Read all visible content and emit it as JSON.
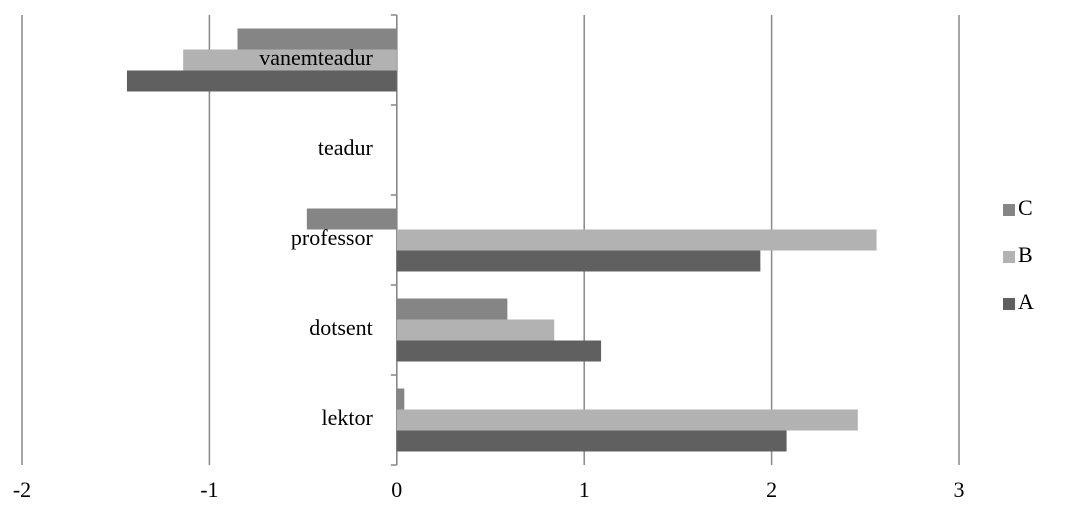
{
  "chart_data": {
    "type": "hbar",
    "categories": [
      "lektor",
      "dotsent",
      "professor",
      "teadur",
      "vanemteadur"
    ],
    "series": [
      {
        "name": "A",
        "color": "#606060",
        "values": [
          2.08,
          1.09,
          1.94,
          0,
          -1.44
        ]
      },
      {
        "name": "B",
        "color": "#b2b2b2",
        "values": [
          2.46,
          0.84,
          2.56,
          0,
          -1.14
        ]
      },
      {
        "name": "C",
        "color": "#858585",
        "values": [
          0.04,
          0.59,
          -0.48,
          0,
          -0.85
        ]
      }
    ],
    "xlim": [
      -2,
      3
    ],
    "xticks": [
      -2,
      -1,
      0,
      1,
      2,
      3
    ],
    "grid": true,
    "legend": "right"
  }
}
